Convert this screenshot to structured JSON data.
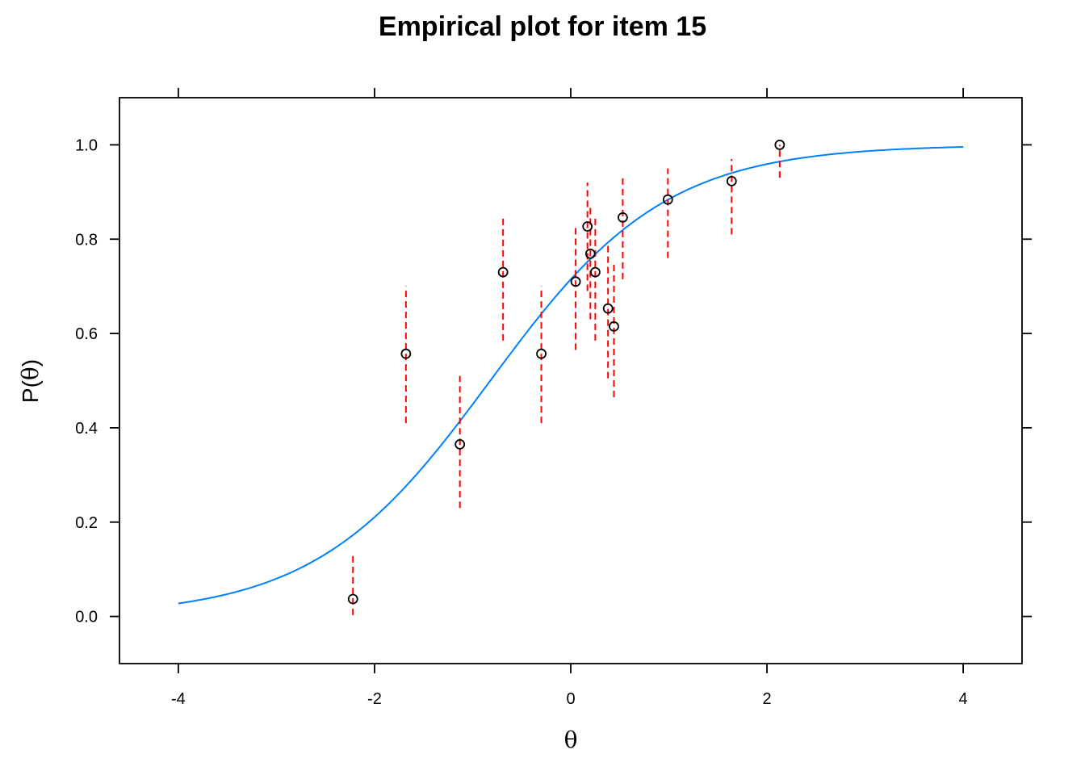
{
  "chart_data": {
    "type": "scatter",
    "title": "Empirical plot for item 15",
    "xlabel": "θ",
    "ylabel_prefix": "P(",
    "ylabel_theta": "θ",
    "ylabel_suffix": ")",
    "xlim": [
      -4.6,
      4.6
    ],
    "ylim": [
      -0.1,
      1.1
    ],
    "x_ticks": [
      -4,
      -2,
      0,
      2,
      4
    ],
    "x_tick_labels": [
      "-4",
      "-2",
      "0",
      "2",
      "4"
    ],
    "y_ticks": [
      0.0,
      0.2,
      0.4,
      0.6,
      0.8,
      1.0
    ],
    "y_tick_labels": [
      "0.0",
      "0.2",
      "0.4",
      "0.6",
      "0.8",
      "1.0"
    ],
    "grid": false,
    "curve": {
      "x_range": [
        -4,
        4
      ],
      "a": 1.12,
      "b": -0.82,
      "color": "#0080ff"
    },
    "points": [
      {
        "x": -2.22,
        "y": 0.037,
        "lo": 0.003,
        "hi": 0.13
      },
      {
        "x": -1.68,
        "y": 0.557,
        "lo": 0.41,
        "hi": 0.7
      },
      {
        "x": -1.13,
        "y": 0.365,
        "lo": 0.23,
        "hi": 0.51
      },
      {
        "x": -0.69,
        "y": 0.73,
        "lo": 0.585,
        "hi": 0.85
      },
      {
        "x": -0.3,
        "y": 0.557,
        "lo": 0.41,
        "hi": 0.7
      },
      {
        "x": 0.05,
        "y": 0.71,
        "lo": 0.565,
        "hi": 0.83
      },
      {
        "x": 0.17,
        "y": 0.827,
        "lo": 0.69,
        "hi": 0.92
      },
      {
        "x": 0.2,
        "y": 0.769,
        "lo": 0.63,
        "hi": 0.87
      },
      {
        "x": 0.25,
        "y": 0.73,
        "lo": 0.585,
        "hi": 0.85
      },
      {
        "x": 0.38,
        "y": 0.653,
        "lo": 0.505,
        "hi": 0.79
      },
      {
        "x": 0.44,
        "y": 0.615,
        "lo": 0.465,
        "hi": 0.75
      },
      {
        "x": 0.53,
        "y": 0.846,
        "lo": 0.715,
        "hi": 0.93
      },
      {
        "x": 0.99,
        "y": 0.884,
        "lo": 0.76,
        "hi": 0.95
      },
      {
        "x": 1.64,
        "y": 0.923,
        "lo": 0.81,
        "hi": 0.97
      },
      {
        "x": 2.13,
        "y": 1.0,
        "lo": 0.93,
        "hi": 1.0
      }
    ],
    "point_color": "#000000",
    "interval_color": "#ff0000"
  }
}
